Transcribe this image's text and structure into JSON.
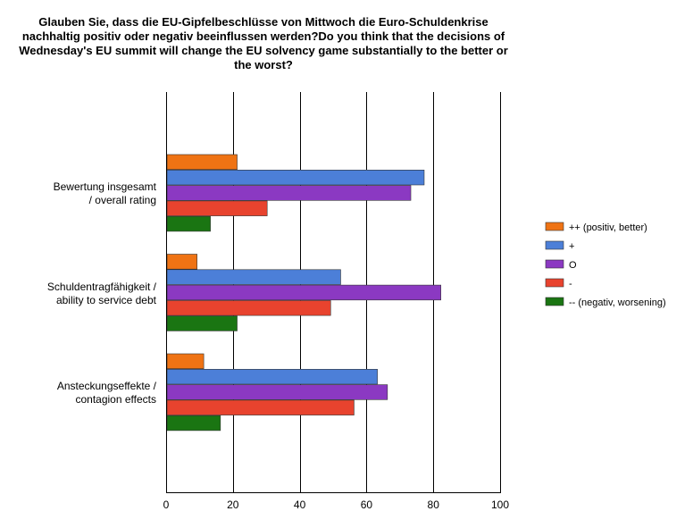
{
  "chart_data": {
    "type": "bar",
    "orientation": "horizontal",
    "title": "Glauben Sie, dass die EU-Gipfelbeschlüsse von Mittwoch die Euro-Schuldenkrise nachhaltig positiv oder negativ beeinflussen werden?Do you think that the decisions of Wednesday's EU summit will change the EU solvency game substantially to the better or the worst?",
    "categories": [
      [
        "Bewertung insgesamt",
        "/ overall rating"
      ],
      [
        "Schuldentragfähigkeit /",
        "ability to service debt"
      ],
      [
        "Ansteckungseffekte /",
        "contagion effects"
      ]
    ],
    "series": [
      {
        "name": "++ (positiv, better)",
        "color": "#ef7314",
        "values": [
          21,
          9,
          11
        ]
      },
      {
        "name": "+",
        "color": "#4c7fd8",
        "values": [
          77,
          52,
          63
        ]
      },
      {
        "name": "O",
        "color": "#8b39c2",
        "values": [
          73,
          82,
          66
        ]
      },
      {
        "name": "-",
        "color": "#e8432e",
        "values": [
          30,
          49,
          56
        ]
      },
      {
        "name": "-- (negativ, worsening)",
        "color": "#1a7512",
        "values": [
          13,
          21,
          16
        ]
      }
    ],
    "xlim": [
      0,
      100
    ],
    "xticks": [
      0,
      20,
      40,
      60,
      80,
      100
    ],
    "grid": true,
    "legend_position": "right"
  }
}
